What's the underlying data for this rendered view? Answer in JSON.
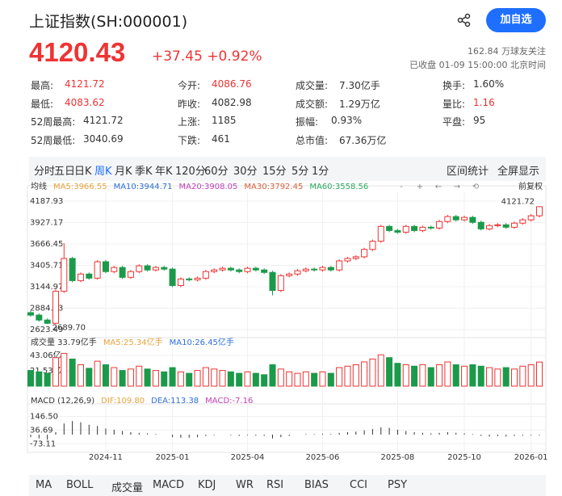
{
  "header": {
    "title": "上证指数(SH:000001)",
    "button": "加自选",
    "price": "4120.43",
    "change": "+37.45 +0.92%",
    "followers": "162.84 万球友关注",
    "status": "已收盘 01-09 15:00:00 北京时间"
  },
  "stats": [
    [
      {
        "label": "最高:",
        "value": "4121.72",
        "red": true
      },
      {
        "label": "今开:",
        "value": "4086.76",
        "red": true
      },
      {
        "label": "成交量:",
        "value": "7.30亿手"
      },
      {
        "label": "换手:",
        "value": "1.60%"
      }
    ],
    [
      {
        "label": "最低:",
        "value": "4083.62",
        "red": true
      },
      {
        "label": "昨收:",
        "value": "4082.98"
      },
      {
        "label": "成交额:",
        "value": "1.29万亿"
      },
      {
        "label": "量比:",
        "value": "1.16",
        "red": true
      }
    ],
    [
      {
        "label": "52周最高:",
        "value": "4121.72"
      },
      {
        "label": "上涨:",
        "value": "1185"
      },
      {
        "label": "振幅:",
        "value": "0.93%"
      },
      {
        "label": "平盘:",
        "value": "95"
      }
    ],
    [
      {
        "label": "52周最低:",
        "value": "3040.69"
      },
      {
        "label": "下跌:",
        "value": "461"
      },
      {
        "label": "总市值:",
        "value": "67.36万亿"
      }
    ]
  ],
  "tabs": [
    "分时",
    "五日",
    "日K",
    "周K",
    "月K",
    "季K",
    "年K",
    "120分",
    "60分",
    "30分",
    "15分",
    "5分",
    "1分"
  ],
  "active_tab": "周K",
  "tools": [
    "区间统计",
    "全屏显示"
  ],
  "bottom_tabs": [
    "MA",
    "BOLL",
    "成交量",
    "MACD",
    "KDJ",
    "WR",
    "RSI",
    "BIAS",
    "CCI",
    "PSY"
  ],
  "chart_data": {
    "type": "candlestick",
    "legend": [
      {
        "name": "均线",
        "color": "#333"
      },
      {
        "name": "MA5:3966.55",
        "color": "#e8a33d"
      },
      {
        "name": "MA10:3944.71",
        "color": "#2e6fd8"
      },
      {
        "name": "MA20:3908.05",
        "color": "#c23fb8"
      },
      {
        "name": "MA30:3792.45",
        "color": "#d9603b"
      },
      {
        "name": "MA60:3558.56",
        "color": "#2aa860"
      }
    ],
    "adjust": "前复权",
    "annotations": [
      "4121.72",
      "2689.70"
    ],
    "up_color": "#e33",
    "down_color": "#1a9a4a",
    "categories": [
      null,
      null,
      null,
      null,
      null,
      null,
      null,
      null,
      null,
      "2024-11",
      null,
      null,
      null,
      null,
      null,
      null,
      null,
      "2025-01",
      null,
      null,
      null,
      null,
      null,
      null,
      null,
      null,
      "2025-04",
      null,
      null,
      null,
      null,
      null,
      null,
      null,
      null,
      "2025-06",
      null,
      null,
      null,
      null,
      null,
      null,
      null,
      null,
      "2025-08",
      null,
      null,
      null,
      null,
      null,
      null,
      null,
      "2025-10",
      null,
      null,
      null,
      null,
      null,
      null,
      null,
      "2026-01",
      null
    ],
    "open": [
      2830,
      2800,
      2740,
      2700,
      3090,
      3490,
      3220,
      3300,
      3250,
      3450,
      3330,
      3380,
      3260,
      3330,
      3400,
      3350,
      3380,
      3360,
      3160,
      3240,
      3230,
      3250,
      3330,
      3350,
      3370,
      3350,
      3330,
      3370,
      3350,
      3320,
      3100,
      3280,
      3300,
      3340,
      3360,
      3350,
      3380,
      3350,
      3460,
      3490,
      3510,
      3600,
      3700,
      3880,
      3830,
      3810,
      3880,
      3830,
      3870,
      3860,
      3940,
      4000,
      3960,
      3990,
      3930,
      3850,
      3890,
      3900,
      3870,
      3920,
      3960,
      4010
    ],
    "close": [
      2800,
      2740,
      2700,
      3090,
      3490,
      3220,
      3300,
      3250,
      3450,
      3330,
      3380,
      3260,
      3330,
      3400,
      3350,
      3380,
      3360,
      3160,
      3240,
      3230,
      3250,
      3330,
      3350,
      3370,
      3350,
      3330,
      3370,
      3350,
      3320,
      3100,
      3280,
      3300,
      3340,
      3360,
      3350,
      3380,
      3350,
      3460,
      3490,
      3510,
      3600,
      3700,
      3880,
      3830,
      3810,
      3880,
      3830,
      3870,
      3860,
      3940,
      4000,
      3960,
      3990,
      3930,
      3850,
      3890,
      3900,
      3870,
      3920,
      3960,
      4010,
      4120.43
    ],
    "high": [
      2850,
      2820,
      2760,
      3110,
      3674,
      3510,
      3320,
      3320,
      3470,
      3470,
      3400,
      3400,
      3350,
      3420,
      3420,
      3400,
      3400,
      3380,
      3260,
      3260,
      3270,
      3350,
      3370,
      3390,
      3390,
      3370,
      3390,
      3390,
      3370,
      3340,
      3300,
      3320,
      3360,
      3380,
      3380,
      3400,
      3400,
      3480,
      3510,
      3530,
      3620,
      3720,
      3900,
      3900,
      3850,
      3900,
      3900,
      3890,
      3890,
      3960,
      4020,
      4020,
      4010,
      4010,
      3950,
      3910,
      3920,
      3920,
      3940,
      3980,
      4030,
      4121.72
    ],
    "low": [
      2780,
      2720,
      2689.7,
      2690,
      3070,
      3200,
      3200,
      3230,
      3230,
      3310,
      3310,
      3240,
      3240,
      3310,
      3330,
      3330,
      3340,
      3140,
      3140,
      3210,
      3210,
      3230,
      3310,
      3330,
      3330,
      3310,
      3310,
      3330,
      3300,
      3040.69,
      3080,
      3260,
      3280,
      3320,
      3330,
      3330,
      3330,
      3330,
      3440,
      3470,
      3490,
      3580,
      3680,
      3810,
      3790,
      3790,
      3810,
      3810,
      3840,
      3840,
      3920,
      3940,
      3940,
      3910,
      3830,
      3830,
      3870,
      3850,
      3850,
      3900,
      3940,
      3990
    ],
    "ylim": [
      2623.49,
      4187.93
    ],
    "yticks": [
      4187.93,
      3927.17,
      3666.45,
      3405.71,
      3144.97,
      2884.23,
      2623.49
    ],
    "volume": {
      "legend": [
        {
          "name": "成交量 33.79亿手",
          "color": "#333"
        },
        {
          "name": "MA5:25.34亿手",
          "color": "#e8a33d"
        },
        {
          "name": "MA10:26.45亿手",
          "color": "#2e6fd8"
        }
      ],
      "values": [
        22,
        20,
        18,
        40,
        46,
        38,
        30,
        25,
        35,
        30,
        26,
        22,
        24,
        28,
        24,
        22,
        20,
        26,
        20,
        18,
        22,
        26,
        24,
        22,
        20,
        18,
        20,
        18,
        16,
        30,
        24,
        20,
        18,
        20,
        18,
        20,
        18,
        26,
        28,
        30,
        34,
        38,
        44,
        40,
        32,
        30,
        28,
        30,
        26,
        30,
        34,
        30,
        28,
        30,
        28,
        26,
        24,
        26,
        24,
        28,
        30,
        33.79
      ],
      "ylim": [
        0,
        54.4
      ],
      "yticks": [
        {
          "value": 43.06,
          "label": "43.06亿"
        },
        {
          "value": 21.53,
          "label": "21.53亿"
        }
      ]
    },
    "macd": {
      "legend": [
        {
          "name": "MACD (12,26,9)",
          "color": "#333"
        },
        {
          "name": "DIF:109.80",
          "color": "#e8a33d"
        },
        {
          "name": "DEA:113.38",
          "color": "#2e6fd8"
        },
        {
          "name": "MACD:-7.16",
          "color": "#c23fb8"
        }
      ],
      "values": [
        -20,
        -30,
        -40,
        20,
        90,
        110,
        100,
        80,
        70,
        50,
        40,
        30,
        20,
        15,
        10,
        5,
        0,
        -20,
        -25,
        -25,
        -20,
        -10,
        -5,
        0,
        -5,
        -10,
        -5,
        -8,
        -10,
        -30,
        -20,
        -10,
        0,
        5,
        5,
        8,
        6,
        15,
        20,
        25,
        35,
        45,
        60,
        55,
        40,
        30,
        20,
        15,
        10,
        15,
        20,
        15,
        10,
        5,
        -10,
        -15,
        -12,
        -15,
        -10,
        -8,
        -5,
        -7.16
      ],
      "color": "#333",
      "ylim": [
        -129.4,
        208.4
      ],
      "yticks": [
        {
          "value": 146.5,
          "label": "146.50"
        },
        {
          "value": 36.69,
          "label": "36.69"
        },
        {
          "value": -73.11,
          "label": "-73.11"
        }
      ]
    }
  }
}
